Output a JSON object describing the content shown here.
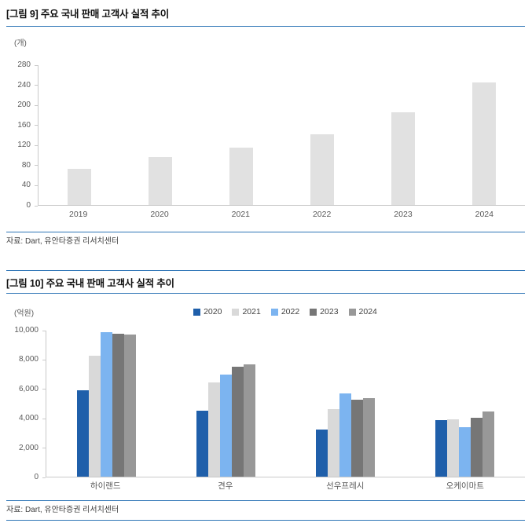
{
  "page": {
    "accent_line_color": "#2E75B6",
    "background": "#FFFFFF"
  },
  "chart_data": [
    {
      "id": "figure9",
      "type": "bar",
      "title": "[그림 9] 주요 국내 판매 고객사 실적 추이",
      "ylabel": "(개)",
      "xlabel": "",
      "categories": [
        "2019",
        "2020",
        "2021",
        "2022",
        "2023",
        "2024"
      ],
      "series": [
        {
          "name": "",
          "color": "#E1E1E1",
          "values": [
            72,
            96,
            115,
            142,
            186,
            245
          ]
        }
      ],
      "ylim": [
        0,
        280
      ],
      "ytick_step": 40,
      "y_format": "plain",
      "grid": false,
      "legend": false,
      "source": "자료: Dart, 유안타증권 리서치센터"
    },
    {
      "id": "figure10",
      "type": "bar",
      "title": "[그림 10] 주요 국내 판매 고객사 실적 추이",
      "ylabel": "(억원)",
      "xlabel": "",
      "categories": [
        "하이랜드",
        "견우",
        "선우프레시",
        "오케이마트"
      ],
      "series": [
        {
          "name": "2020",
          "color": "#1F5FAA",
          "values": [
            5900,
            4500,
            3200,
            3850
          ]
        },
        {
          "name": "2021",
          "color": "#D9D9D9",
          "values": [
            8300,
            6450,
            4650,
            3900
          ]
        },
        {
          "name": "2022",
          "color": "#7CB4F0",
          "values": [
            9900,
            7000,
            5700,
            3400
          ]
        },
        {
          "name": "2023",
          "color": "#767676",
          "values": [
            9800,
            7550,
            5250,
            4050
          ]
        },
        {
          "name": "2024",
          "color": "#989898",
          "values": [
            9750,
            7700,
            5400,
            4450
          ]
        }
      ],
      "ylim": [
        0,
        10000
      ],
      "ytick_step": 2000,
      "y_format": "comma",
      "grid": false,
      "legend": true,
      "legend_position": "top",
      "source": "자료: Dart, 유안타증권 리서치센터"
    }
  ]
}
